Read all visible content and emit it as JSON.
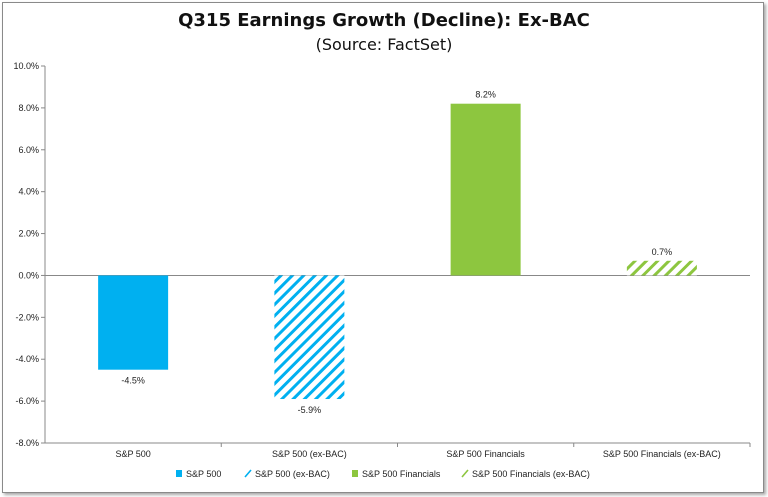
{
  "chart_data": {
    "type": "bar",
    "title": "Q315 Earnings Growth (Decline): Ex-BAC",
    "subtitle": "(Source: FactSet)",
    "categories": [
      "S&P 500",
      "S&P 500 (ex-BAC)",
      "S&P 500 Financials",
      "S&P 500 Financials (ex-BAC)"
    ],
    "values": [
      -4.5,
      -5.9,
      8.2,
      0.7
    ],
    "data_labels": [
      "-4.5%",
      "-5.9%",
      "8.2%",
      "0.7%"
    ],
    "y_ticks": [
      "10.0%",
      "8.0%",
      "6.0%",
      "4.0%",
      "2.0%",
      "0.0%",
      "-2.0%",
      "-4.0%",
      "-6.0%",
      "-8.0%"
    ],
    "ylim": [
      -8,
      10
    ],
    "grid": false,
    "legend_position": "bottom",
    "legend": [
      "S&P 500",
      "S&P 500 (ex-BAC)",
      "S&P 500 Financials",
      "S&P 500 Financials (ex-BAC)"
    ],
    "colors": [
      "#00b0f0",
      "#00b0f0",
      "#8dc63f",
      "#8dc63f"
    ],
    "hatched": [
      false,
      true,
      false,
      true
    ]
  }
}
